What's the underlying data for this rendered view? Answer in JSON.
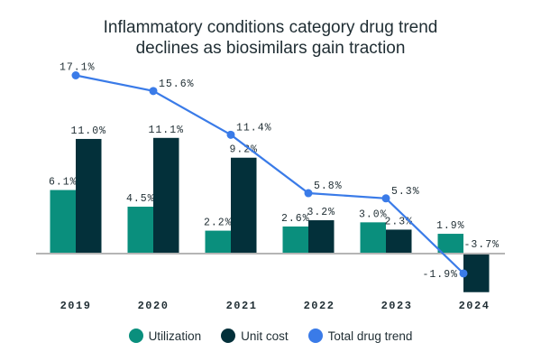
{
  "chart_data": {
    "type": "bar",
    "title_line1": "Inflammatory conditions category drug trend",
    "title_line2": "declines as biosimilars gain traction",
    "categories": [
      "2019",
      "2020",
      "2021",
      "2022",
      "2023",
      "2024"
    ],
    "series": [
      {
        "name": "Utilization",
        "kind": "bar",
        "color": "#0a8f7d",
        "values": [
          6.1,
          4.5,
          2.2,
          2.6,
          3.0,
          1.9
        ],
        "labels": [
          "6.1%",
          "4.5%",
          "2.2%",
          "2.6%",
          "3.0%",
          "1.9%"
        ]
      },
      {
        "name": "Unit cost",
        "kind": "bar",
        "color": "#03303a",
        "values": [
          11.0,
          11.1,
          9.2,
          3.2,
          2.3,
          -3.7
        ],
        "labels": [
          "11.0%",
          "11.1%",
          "9.2%",
          "3.2%",
          "2.3%",
          "-3.7%"
        ]
      },
      {
        "name": "Total drug trend",
        "kind": "line",
        "color": "#3a7be8",
        "values": [
          17.1,
          15.6,
          11.4,
          5.8,
          5.3,
          -1.9
        ],
        "labels": [
          "17.1%",
          "15.6%",
          "11.4%",
          "5.8%",
          "5.3%",
          "-1.9%"
        ]
      }
    ],
    "ylim": [
      -4,
      18
    ],
    "legend": "bottom",
    "grid": false
  }
}
